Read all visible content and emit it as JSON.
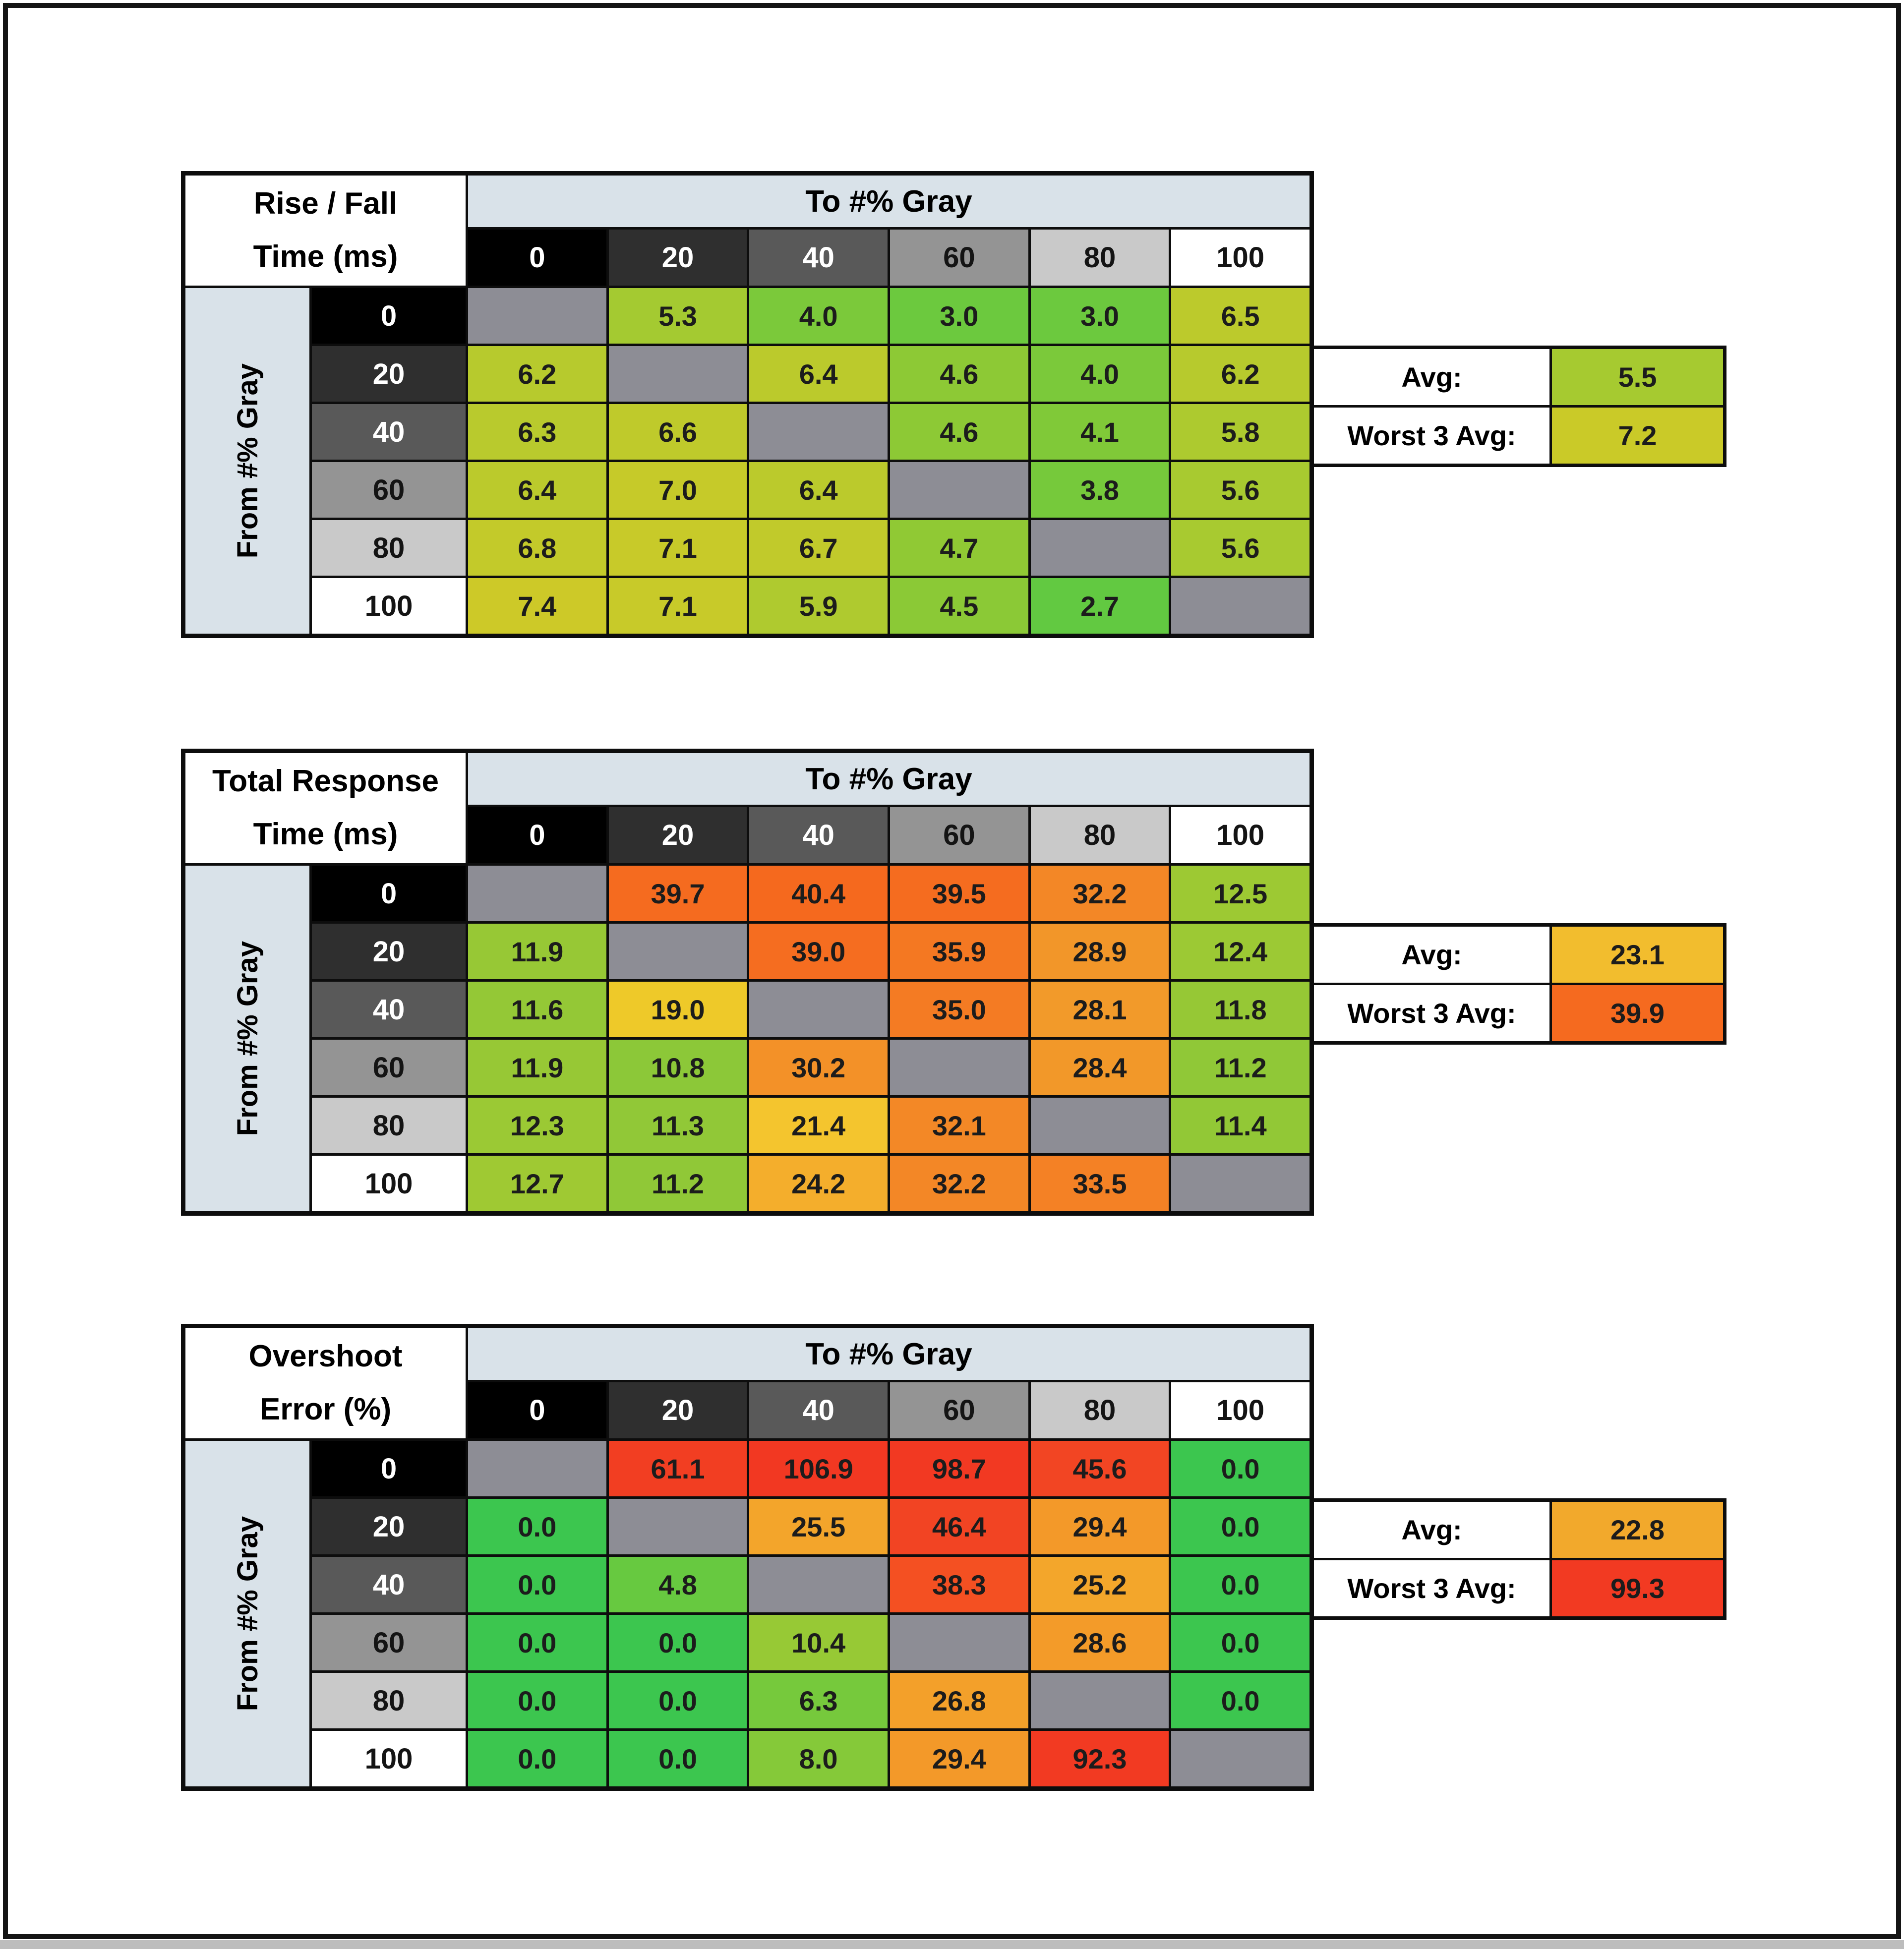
{
  "styles": {
    "band_color": "#d9e2e9",
    "diagonal_color": "#8d8d95",
    "grid_color": "#0d0d0d",
    "swatch_colors": [
      "#000000",
      "#2f2f2f",
      "#595959",
      "#949494",
      "#c9c9c9",
      "#ffffff"
    ],
    "swatch_text_colors": [
      "#ffffff",
      "#ffffff",
      "#ffffff",
      "#141414",
      "#141414",
      "#141414"
    ]
  },
  "chart_data": [
    {
      "type": "heatmap",
      "title_line1": "Rise / Fall",
      "title_line2": "Time (ms)",
      "col_axis_label": "To #% Gray",
      "row_axis_label": "From #% Gray",
      "col_labels": [
        "0",
        "20",
        "40",
        "60",
        "80",
        "100"
      ],
      "row_labels": [
        "0",
        "20",
        "40",
        "60",
        "80",
        "100"
      ],
      "values": [
        [
          null,
          "5.3",
          "4.0",
          "3.0",
          "3.0",
          "6.5"
        ],
        [
          "6.2",
          null,
          "6.4",
          "4.6",
          "4.0",
          "6.2"
        ],
        [
          "6.3",
          "6.6",
          null,
          "4.6",
          "4.1",
          "5.8"
        ],
        [
          "6.4",
          "7.0",
          "6.4",
          null,
          "3.8",
          "5.6"
        ],
        [
          "6.8",
          "7.1",
          "6.7",
          "4.7",
          null,
          "5.6"
        ],
        [
          "7.4",
          "7.1",
          "5.9",
          "4.5",
          "2.7",
          null
        ]
      ],
      "cell_colors": [
        [
          null,
          "#a4ca31",
          "#7bc93a",
          "#6cc93e",
          "#6cc93e",
          "#bcca2c"
        ],
        [
          "#b7ca2d",
          null,
          "#bbca2c",
          "#8dc935",
          "#7bc93a",
          "#b7ca2d"
        ],
        [
          "#b9ca2d",
          "#bfca2b",
          null,
          "#8dc935",
          "#80c938",
          "#adca2f"
        ],
        [
          "#bbca2c",
          "#c6ca29",
          "#bbca2c",
          null,
          "#76c93b",
          "#a8ca30"
        ],
        [
          "#c3ca2a",
          "#c8ca29",
          "#c1ca2b",
          "#90c934",
          null,
          "#a8ca30"
        ],
        [
          "#cdc928",
          "#c8ca29",
          "#afca2f",
          "#8bc936",
          "#62c941",
          null
        ]
      ],
      "avg_label": "Avg:",
      "avg_value": "5.5",
      "avg_color": "#a6ca30",
      "worst_label": "Worst 3 Avg:",
      "worst_value": "7.2",
      "worst_color": "#caca28"
    },
    {
      "type": "heatmap",
      "title_line1": "Total Response",
      "title_line2": "Time (ms)",
      "col_axis_label": "To #% Gray",
      "row_axis_label": "From #% Gray",
      "col_labels": [
        "0",
        "20",
        "40",
        "60",
        "80",
        "100"
      ],
      "row_labels": [
        "0",
        "20",
        "40",
        "60",
        "80",
        "100"
      ],
      "values": [
        [
          null,
          "39.7",
          "40.4",
          "39.5",
          "32.2",
          "12.5"
        ],
        [
          "11.9",
          null,
          "39.0",
          "35.9",
          "28.9",
          "12.4"
        ],
        [
          "11.6",
          "19.0",
          null,
          "35.0",
          "28.1",
          "11.8"
        ],
        [
          "11.9",
          "10.8",
          "30.2",
          null,
          "28.4",
          "11.2"
        ],
        [
          "12.3",
          "11.3",
          "21.4",
          "32.1",
          null,
          "11.4"
        ],
        [
          "12.7",
          "11.2",
          "24.2",
          "32.2",
          "33.5",
          null
        ]
      ],
      "cell_colors": [
        [
          null,
          "#f56b1f",
          "#f5691e",
          "#f56c1f",
          "#f38726",
          "#9dc933"
        ],
        [
          "#97c835",
          null,
          "#f56d20",
          "#f47822",
          "#f29629",
          "#9cc934"
        ],
        [
          "#94c836",
          "#eec929",
          null,
          "#f47b23",
          "#f29a2a",
          "#96c835"
        ],
        [
          "#97c835",
          "#8cc838",
          "#f39128",
          null,
          "#f29829",
          "#90c837"
        ],
        [
          "#9bc934",
          "#91c837",
          "#f4c52e",
          "#f38826",
          null,
          "#92c836"
        ],
        [
          "#9fc933",
          "#90c837",
          "#f4ae2c",
          "#f38726",
          "#f48125",
          null
        ]
      ],
      "avg_label": "Avg:",
      "avg_value": "23.1",
      "avg_color": "#f2bd2e",
      "worst_label": "Worst 3 Avg:",
      "worst_value": "39.9",
      "worst_color": "#f56a1f"
    },
    {
      "type": "heatmap",
      "title_line1": "Overshoot",
      "title_line2": "Error (%)",
      "col_axis_label": "To #% Gray",
      "row_axis_label": "From #% Gray",
      "col_labels": [
        "0",
        "20",
        "40",
        "60",
        "80",
        "100"
      ],
      "row_labels": [
        "0",
        "20",
        "40",
        "60",
        "80",
        "100"
      ],
      "values": [
        [
          null,
          "61.1",
          "106.9",
          "98.7",
          "45.6",
          "0.0"
        ],
        [
          "0.0",
          null,
          "25.5",
          "46.4",
          "29.4",
          "0.0"
        ],
        [
          "0.0",
          "4.8",
          null,
          "38.3",
          "25.2",
          "0.0"
        ],
        [
          "0.0",
          "0.0",
          "10.4",
          null,
          "28.6",
          "0.0"
        ],
        [
          "0.0",
          "0.0",
          "6.3",
          "26.8",
          null,
          "0.0"
        ],
        [
          "0.0",
          "0.0",
          "8.0",
          "29.4",
          "92.3",
          null
        ]
      ],
      "cell_colors": [
        [
          null,
          "#f23e22",
          "#f23822",
          "#f23922",
          "#f24523",
          "#3cc64f"
        ],
        [
          "#3cc64f",
          null,
          "#f3a52b",
          "#f24423",
          "#f39929",
          "#3cc64f"
        ],
        [
          "#3cc64f",
          "#67c940",
          null,
          "#f45022",
          "#f3a62b",
          "#3cc64f"
        ],
        [
          "#3cc64f",
          "#3cc64f",
          "#97c935",
          null,
          "#f39b29",
          "#3cc64f"
        ],
        [
          "#3cc64f",
          "#3cc64f",
          "#76c93c",
          "#f3a02a",
          null,
          "#3cc64f"
        ],
        [
          "#3cc64f",
          "#3cc64f",
          "#85c939",
          "#f39929",
          "#f23a22",
          null
        ]
      ],
      "avg_label": "Avg:",
      "avg_value": "22.8",
      "avg_color": "#f2a92c",
      "worst_label": "Worst 3 Avg:",
      "worst_value": "99.3",
      "worst_color": "#f23a22"
    }
  ]
}
